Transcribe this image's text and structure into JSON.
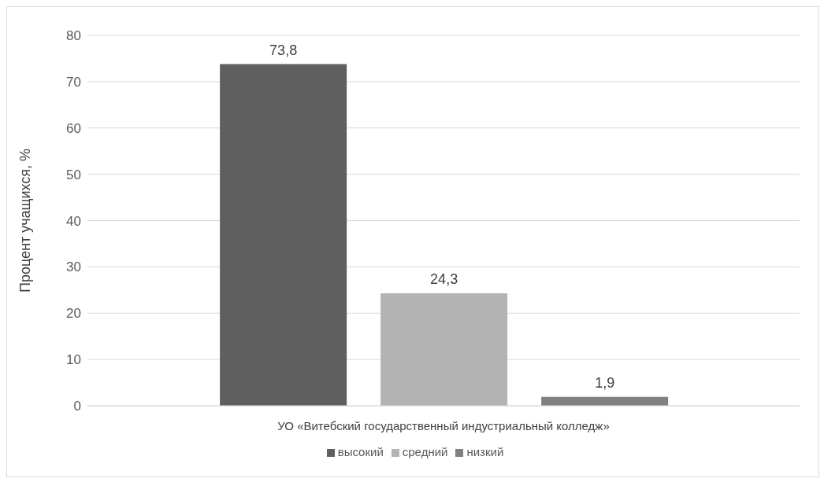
{
  "chart_data": {
    "type": "bar",
    "ylabel": "Процент учащихся, %",
    "categories": [
      "УО «Витебский государственный индустриальный колледж»"
    ],
    "series": [
      {
        "name": "высокий",
        "color": "#5f5f5f",
        "values": [
          73.8
        ],
        "value_labels": [
          "73,8"
        ]
      },
      {
        "name": "средний",
        "color": "#b3b3b3",
        "values": [
          24.3
        ],
        "value_labels": [
          "24,3"
        ]
      },
      {
        "name": "низкий",
        "color": "#808080",
        "values": [
          1.9
        ],
        "value_labels": [
          "1,9"
        ]
      }
    ],
    "ylim": [
      0,
      80
    ],
    "yticks": [
      0,
      10,
      20,
      30,
      40,
      50,
      60,
      70,
      80
    ],
    "grid": "y",
    "legend": "bottom"
  }
}
